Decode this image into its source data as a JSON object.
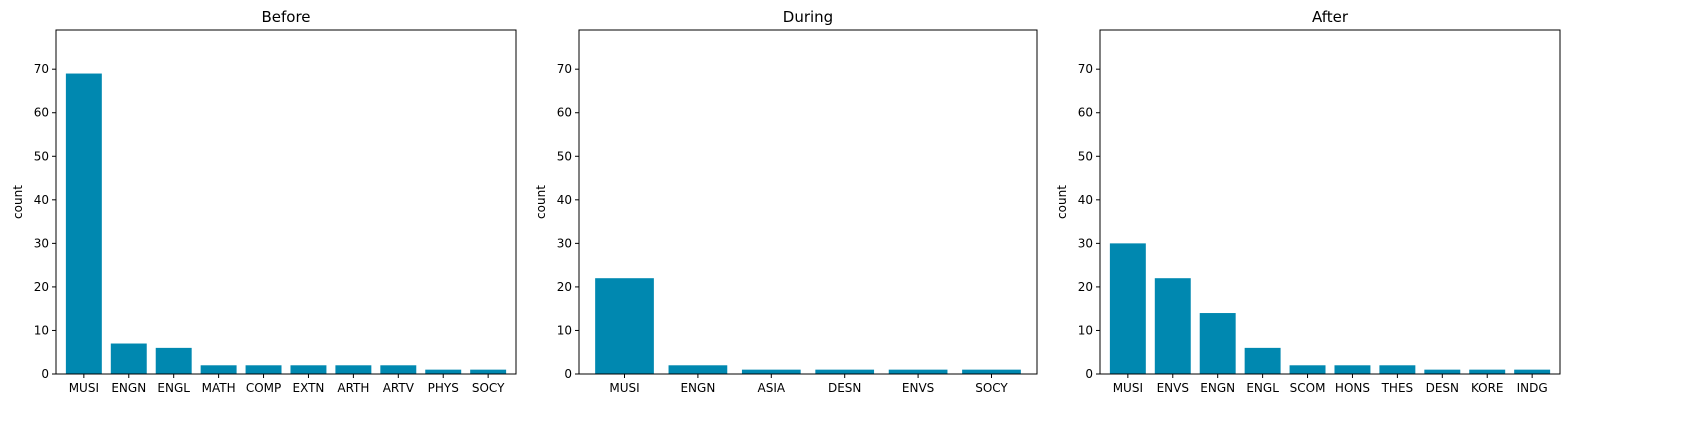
{
  "chart_data": [
    {
      "type": "bar",
      "title": "Before",
      "ylabel": "count",
      "ylim": [
        0,
        79
      ],
      "yticks": [
        0,
        10,
        20,
        30,
        40,
        50,
        60,
        70
      ],
      "grid": false,
      "bar_color": "#0088b0",
      "categories": [
        "MUSI",
        "ENGN",
        "ENGL",
        "MATH",
        "COMP",
        "EXTN",
        "ARTH",
        "ARTV",
        "PHYS",
        "SOCY"
      ],
      "values": [
        69,
        7,
        6,
        2,
        2,
        2,
        2,
        2,
        1,
        1
      ]
    },
    {
      "type": "bar",
      "title": "During",
      "ylabel": "count",
      "ylim": [
        0,
        79
      ],
      "yticks": [
        0,
        10,
        20,
        30,
        40,
        50,
        60,
        70
      ],
      "grid": false,
      "bar_color": "#0088b0",
      "categories": [
        "MUSI",
        "ENGN",
        "ASIA",
        "DESN",
        "ENVS",
        "SOCY"
      ],
      "values": [
        22,
        2,
        1,
        1,
        1,
        1
      ]
    },
    {
      "type": "bar",
      "title": "After",
      "ylabel": "count",
      "ylim": [
        0,
        79
      ],
      "yticks": [
        0,
        10,
        20,
        30,
        40,
        50,
        60,
        70
      ],
      "grid": false,
      "bar_color": "#0088b0",
      "categories": [
        "MUSI",
        "ENVS",
        "ENGN",
        "ENGL",
        "SCOM",
        "HONS",
        "THES",
        "DESN",
        "KORE",
        "INDG"
      ],
      "values": [
        30,
        22,
        14,
        6,
        2,
        2,
        2,
        1,
        1,
        1
      ]
    }
  ]
}
